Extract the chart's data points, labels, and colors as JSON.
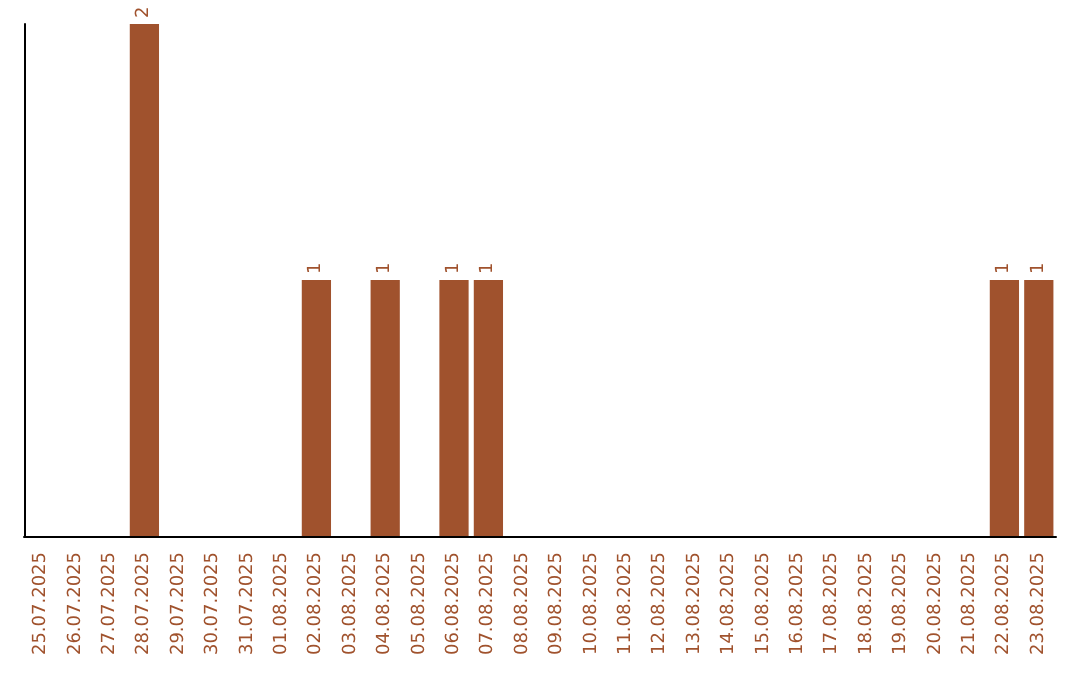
{
  "chart_data": {
    "type": "bar",
    "categories": [
      "25.07.2025",
      "26.07.2025",
      "27.07.2025",
      "28.07.2025",
      "29.07.2025",
      "30.07.2025",
      "31.07.2025",
      "01.08.2025",
      "02.08.2025",
      "03.08.2025",
      "04.08.2025",
      "05.08.2025",
      "06.08.2025",
      "07.08.2025",
      "08.08.2025",
      "09.08.2025",
      "10.08.2025",
      "11.08.2025",
      "12.08.2025",
      "13.08.2025",
      "14.08.2025",
      "15.08.2025",
      "16.08.2025",
      "17.08.2025",
      "18.08.2025",
      "19.08.2025",
      "20.08.2025",
      "21.08.2025",
      "22.08.2025",
      "23.08.2025"
    ],
    "values": [
      0,
      0,
      0,
      2,
      0,
      0,
      0,
      0,
      1,
      0,
      1,
      0,
      1,
      1,
      0,
      0,
      0,
      0,
      0,
      0,
      0,
      0,
      0,
      0,
      0,
      0,
      0,
      0,
      1,
      1
    ],
    "value_labels": [
      null,
      null,
      null,
      "2",
      null,
      null,
      null,
      null,
      "1",
      null,
      "1",
      null,
      "1",
      "1",
      null,
      null,
      null,
      null,
      null,
      null,
      null,
      null,
      null,
      null,
      null,
      null,
      null,
      null,
      "1",
      "1"
    ],
    "color": "#a0522d",
    "tick_labels": "x"
  }
}
